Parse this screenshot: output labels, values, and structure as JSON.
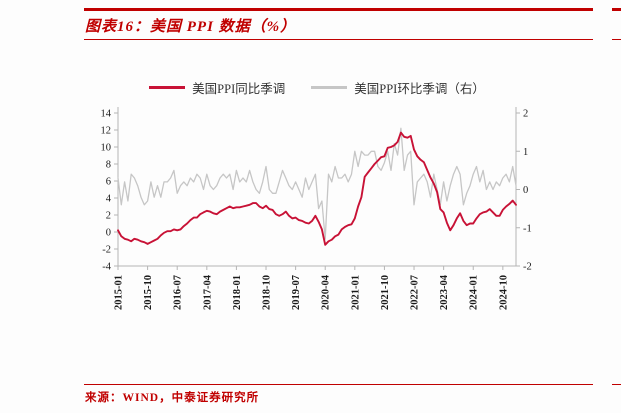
{
  "page": {
    "title": "图表16：美国 PPI 数据（%）",
    "source": "来源：WIND，中泰证券研究所",
    "accent_color": "#c00000"
  },
  "legend": [
    {
      "label": "美国PPI同比季调",
      "color": "#c81236"
    },
    {
      "label": "美国PPI环比季调（右）",
      "color": "#c6c6c6"
    }
  ],
  "chart_data": {
    "type": "line",
    "title": "美国 PPI 数据（%）",
    "x_tick_labels": [
      "2015-01",
      "2015-10",
      "2016-07",
      "2017-04",
      "2018-01",
      "2018-10",
      "2019-07",
      "2020-04",
      "2021-01",
      "2021-10",
      "2022-07",
      "2023-04",
      "2024-01",
      "2024-10"
    ],
    "x_tick_step": 9,
    "x_start": "2015-01",
    "x_end": "2025-02",
    "left_axis": {
      "min": -4,
      "max": 14,
      "ticks": [
        14,
        12,
        10,
        8,
        6,
        4,
        2,
        0,
        -2,
        -4
      ]
    },
    "right_axis": {
      "min": -2,
      "max": 2,
      "ticks": [
        2,
        1,
        0,
        -1,
        -2
      ]
    },
    "grid": false,
    "legend_position": "top",
    "series": [
      {
        "name": "美国PPI同比季调",
        "axis": "left",
        "color": "#c81236",
        "values": [
          0.2,
          -0.5,
          -0.8,
          -0.9,
          -1.1,
          -0.8,
          -0.9,
          -1.1,
          -1.2,
          -1.4,
          -1.2,
          -1.0,
          -0.8,
          -0.4,
          -0.1,
          0.1,
          0.1,
          0.3,
          0.2,
          0.3,
          0.7,
          1.0,
          1.4,
          1.7,
          1.7,
          2.1,
          2.3,
          2.5,
          2.4,
          2.2,
          2.1,
          2.4,
          2.6,
          2.8,
          3.0,
          2.8,
          2.9,
          2.9,
          3.0,
          3.1,
          3.2,
          3.4,
          3.4,
          3.0,
          2.8,
          3.1,
          2.7,
          2.6,
          2.1,
          1.9,
          2.1,
          2.4,
          1.9,
          1.6,
          1.7,
          1.4,
          1.3,
          1.1,
          1.0,
          1.3,
          1.9,
          1.2,
          0.3,
          -1.5,
          -1.1,
          -0.9,
          -0.5,
          -0.3,
          0.3,
          0.6,
          0.8,
          0.9,
          1.6,
          3.0,
          4.1,
          6.5,
          7.0,
          7.5,
          8.0,
          8.4,
          8.8,
          8.9,
          9.9,
          10.0,
          10.2,
          10.6,
          11.7,
          11.2,
          11.1,
          11.3,
          9.7,
          8.9,
          8.5,
          8.2,
          7.3,
          6.4,
          5.7,
          4.7,
          2.7,
          2.3,
          1.1,
          0.2,
          0.8,
          1.6,
          2.2,
          1.3,
          0.8,
          1.0,
          1.0,
          1.6,
          2.1,
          2.3,
          2.4,
          2.7,
          2.3,
          1.9,
          1.9,
          2.6,
          3.0,
          3.3,
          3.7,
          3.2
        ]
      },
      {
        "name": "美国PPI环比季调（右）",
        "axis": "right",
        "color": "#c6c6c6",
        "values": [
          0.3,
          -0.4,
          0.2,
          -0.3,
          0.4,
          0.3,
          0.1,
          -0.2,
          -0.4,
          -0.3,
          0.2,
          -0.2,
          0.1,
          -0.2,
          0.2,
          0.2,
          0.3,
          0.5,
          -0.1,
          0.1,
          0.2,
          0.1,
          0.3,
          0.2,
          0.4,
          0.3,
          0.0,
          0.4,
          0.1,
          0.0,
          0.1,
          0.3,
          0.4,
          0.3,
          0.4,
          0.0,
          0.5,
          0.2,
          0.3,
          0.2,
          0.5,
          0.2,
          0.0,
          -0.1,
          0.2,
          0.6,
          0.0,
          -0.1,
          -0.1,
          0.2,
          0.5,
          0.3,
          0.1,
          0.0,
          0.2,
          0.0,
          -0.2,
          0.3,
          0.0,
          0.2,
          0.4,
          -0.5,
          -0.3,
          -1.3,
          0.4,
          0.2,
          0.6,
          0.3,
          0.3,
          0.4,
          0.2,
          0.4,
          1.0,
          0.6,
          1.0,
          0.9,
          0.9,
          1.0,
          1.0,
          0.6,
          0.5,
          0.7,
          1.0,
          0.5,
          1.2,
          0.9,
          1.6,
          0.5,
          0.9,
          1.0,
          -0.4,
          0.2,
          0.3,
          0.4,
          0.2,
          -0.2,
          0.4,
          0.0,
          -0.4,
          0.2,
          -0.3,
          0.1,
          0.4,
          0.6,
          0.4,
          -0.4,
          -0.1,
          0.1,
          0.4,
          0.6,
          0.2,
          0.5,
          0.0,
          0.2,
          0.0,
          0.2,
          0.1,
          0.3,
          0.4,
          0.2,
          0.6,
          0.1
        ]
      }
    ]
  }
}
